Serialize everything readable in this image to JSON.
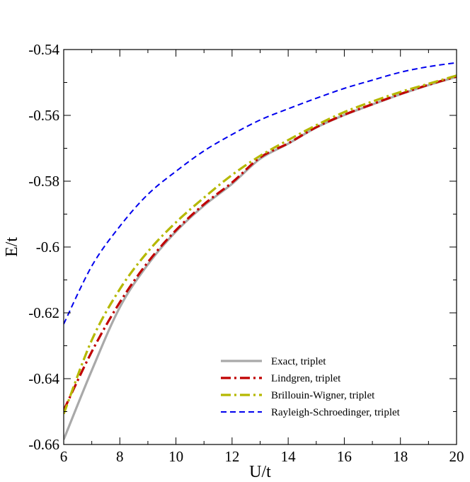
{
  "chart_data": {
    "type": "line",
    "xlabel": "U/t",
    "ylabel": "E/t",
    "xlim": [
      6,
      20
    ],
    "ylim": [
      -0.66,
      -0.54
    ],
    "xticks": [
      6,
      8,
      10,
      12,
      14,
      16,
      18,
      20
    ],
    "xtick_labels": [
      "6",
      "8",
      "10",
      "12",
      "14",
      "16",
      "18",
      "20"
    ],
    "yticks": [
      -0.66,
      -0.64,
      -0.62,
      -0.6,
      -0.58,
      -0.56,
      -0.54
    ],
    "ytick_labels": [
      "-0.66",
      "-0.64",
      "-0.62",
      "-0.6",
      "-0.58",
      "-0.56",
      "-0.54"
    ],
    "grid": false,
    "legend_position": "bottom-right",
    "x": [
      6,
      7,
      8,
      9,
      10,
      11,
      12,
      13,
      14,
      15,
      16,
      17,
      18,
      19,
      20
    ],
    "series": [
      {
        "name": "Exact, triplet",
        "color": "#a9a9a9",
        "dash": "solid",
        "values": [
          -0.6585,
          -0.6375,
          -0.6183,
          -0.6053,
          -0.5953,
          -0.5874,
          -0.5808,
          -0.5732,
          -0.5686,
          -0.5637,
          -0.5599,
          -0.5567,
          -0.5536,
          -0.5508,
          -0.5483
        ]
      },
      {
        "name": "Lindgren, triplet",
        "color": "#c00000",
        "dash": "dashdot",
        "values": [
          -0.6496,
          -0.6318,
          -0.6168,
          -0.6046,
          -0.5949,
          -0.587,
          -0.5804,
          -0.5728,
          -0.5685,
          -0.5636,
          -0.5598,
          -0.5566,
          -0.5535,
          -0.5507,
          -0.5482
        ]
      },
      {
        "name": "Brillouin-Wigner, triplet",
        "color": "#b5b800",
        "dash": "dashdot",
        "values": [
          -0.6507,
          -0.6283,
          -0.6128,
          -0.6014,
          -0.5925,
          -0.585,
          -0.5781,
          -0.5723,
          -0.5675,
          -0.563,
          -0.559,
          -0.5558,
          -0.5529,
          -0.5504,
          -0.5479
        ]
      },
      {
        "name": "Rayleigh-Schroedinger, triplet",
        "color": "#0000ee",
        "dash": "dashed",
        "values": [
          -0.6234,
          -0.6058,
          -0.5937,
          -0.584,
          -0.577,
          -0.5708,
          -0.5658,
          -0.5614,
          -0.558,
          -0.5548,
          -0.5518,
          -0.5493,
          -0.5469,
          -0.5452,
          -0.544
        ]
      }
    ]
  }
}
